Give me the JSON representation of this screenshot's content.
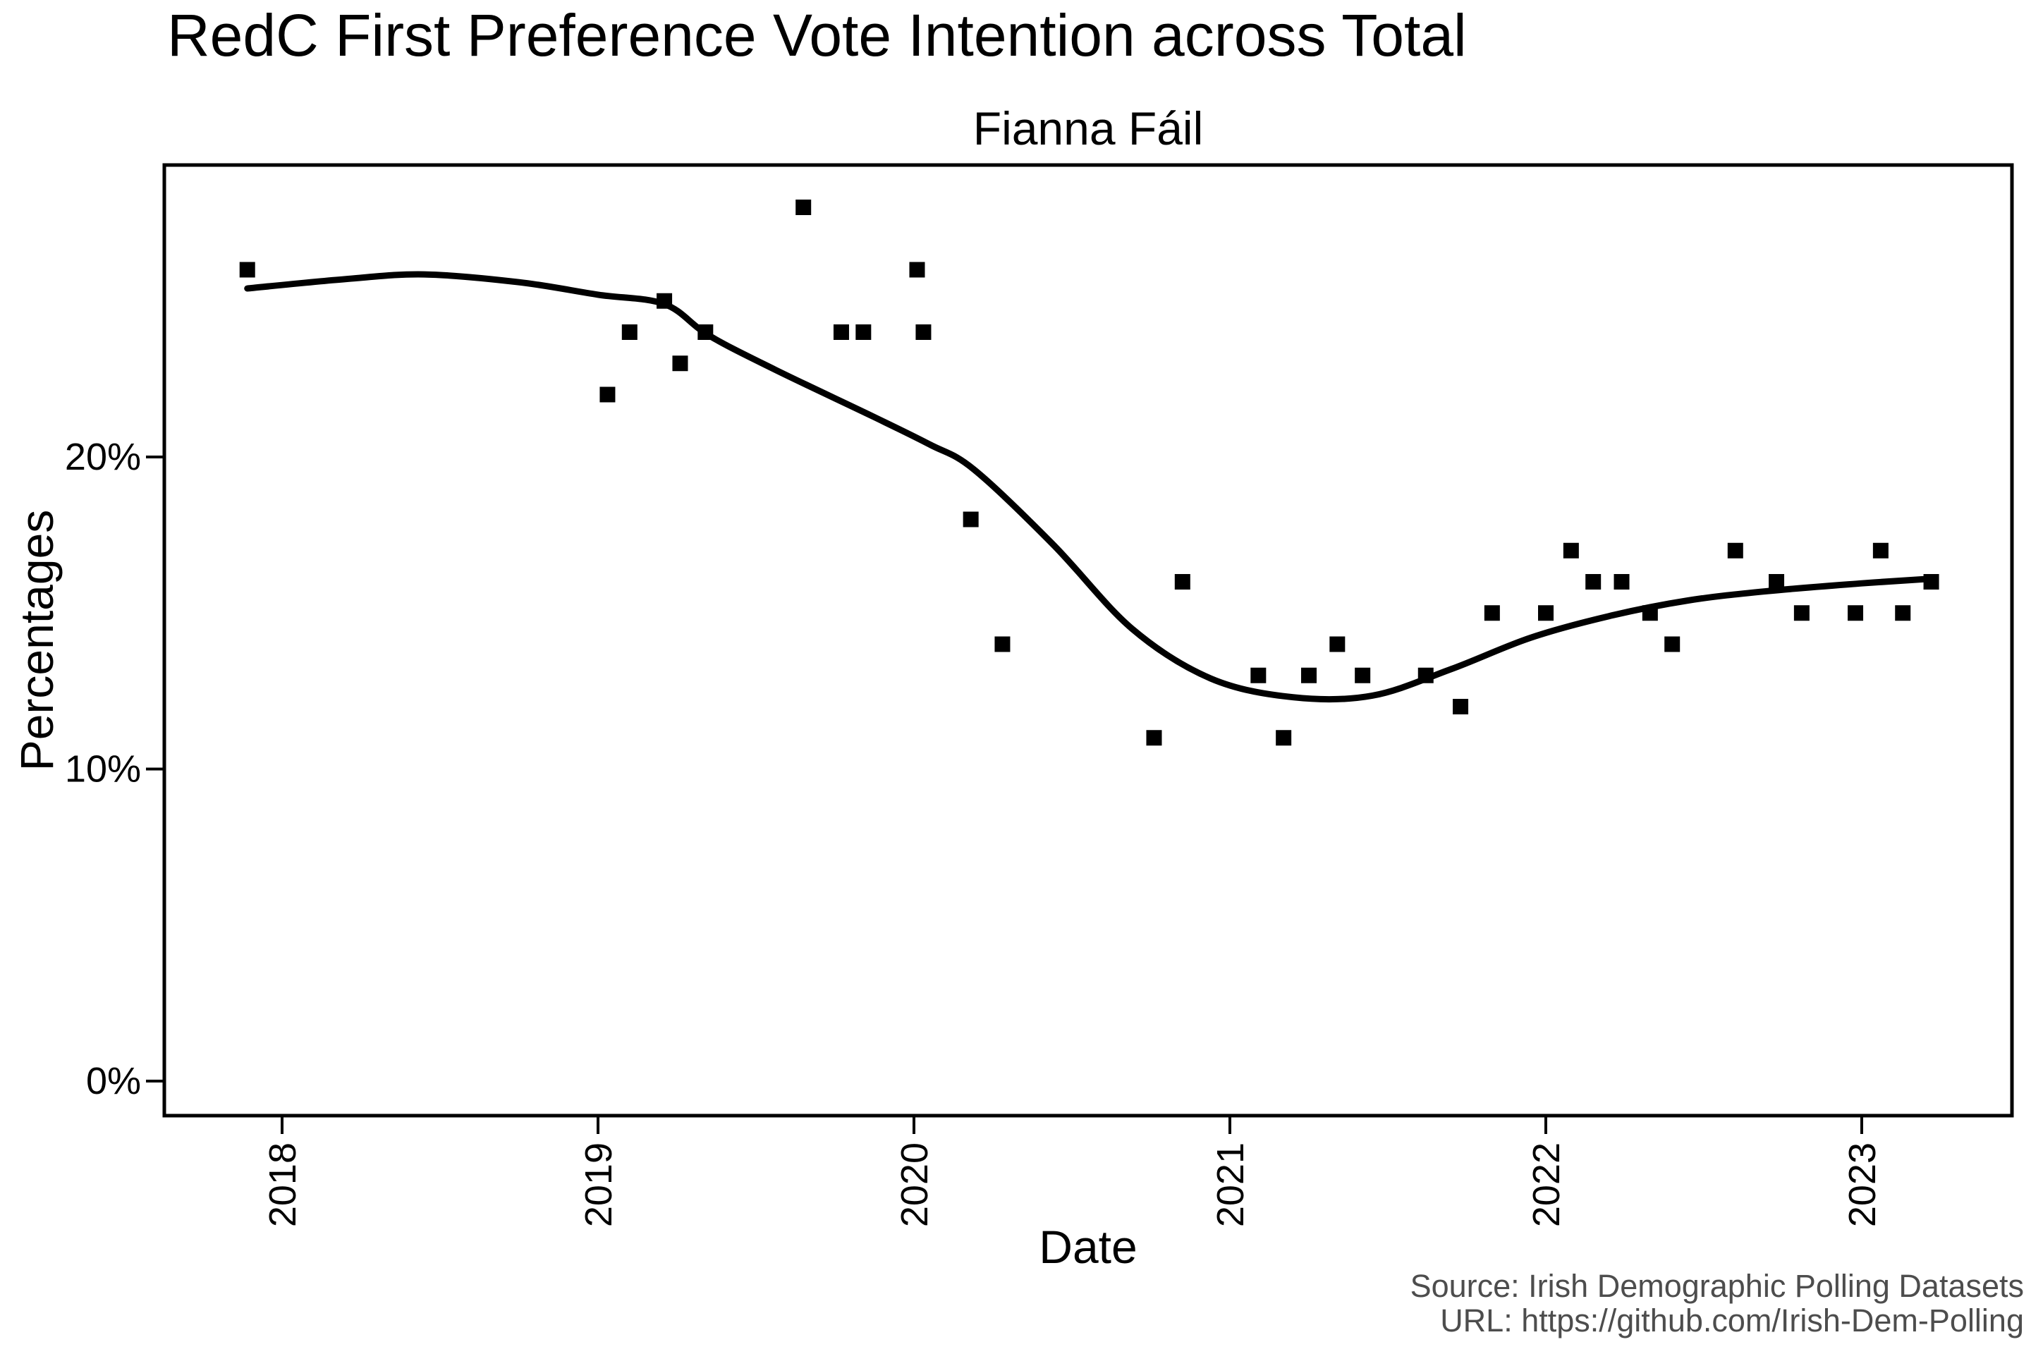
{
  "header": {
    "title": "RedC First Preference Vote Intention across Total",
    "subtitle": "Fianna Fáil"
  },
  "source": {
    "line1": "Source: Irish Demographic Polling Datasets",
    "line2": "URL: https://github.com/Irish-Dem-Polling",
    "color": "#4d4d4d"
  },
  "chart_data": {
    "type": "scatter",
    "title": "RedC First Preference Vote Intention across Total",
    "subtitle": "Fianna Fáil",
    "xlabel": "Date",
    "ylabel": "Percentages",
    "grid": "off",
    "legend": "none",
    "background": "#ffffff",
    "panel_border_color": "#000000",
    "xlim": [
      2017.63,
      2023.48
    ],
    "ylim": [
      -1.1,
      29.4
    ],
    "x_ticks": [
      {
        "value": 2018,
        "label": "2018"
      },
      {
        "value": 2019,
        "label": "2019"
      },
      {
        "value": 2020,
        "label": "2020"
      },
      {
        "value": 2021,
        "label": "2021"
      },
      {
        "value": 2022,
        "label": "2022"
      },
      {
        "value": 2023,
        "label": "2023"
      }
    ],
    "y_ticks": [
      {
        "value": 0,
        "label": "0%"
      },
      {
        "value": 10,
        "label": "10%"
      },
      {
        "value": 20,
        "label": "20%"
      }
    ],
    "series": [
      {
        "name": "poll-results",
        "type": "scatter",
        "marker": "filled-square",
        "color": "#000000",
        "points": [
          [
            2017.89,
            26
          ],
          [
            2019.03,
            22
          ],
          [
            2019.1,
            24
          ],
          [
            2019.21,
            25
          ],
          [
            2019.26,
            23
          ],
          [
            2019.34,
            24
          ],
          [
            2019.65,
            28
          ],
          [
            2019.77,
            24
          ],
          [
            2019.84,
            24
          ],
          [
            2020.01,
            26
          ],
          [
            2020.03,
            24
          ],
          [
            2020.18,
            18
          ],
          [
            2020.28,
            14
          ],
          [
            2020.76,
            11
          ],
          [
            2020.85,
            16
          ],
          [
            2021.09,
            13
          ],
          [
            2021.17,
            11
          ],
          [
            2021.25,
            13
          ],
          [
            2021.34,
            14
          ],
          [
            2021.42,
            13
          ],
          [
            2021.62,
            13
          ],
          [
            2021.73,
            12
          ],
          [
            2021.83,
            15
          ],
          [
            2022.0,
            15
          ],
          [
            2022.08,
            17
          ],
          [
            2022.15,
            16
          ],
          [
            2022.24,
            16
          ],
          [
            2022.33,
            15
          ],
          [
            2022.4,
            14
          ],
          [
            2022.6,
            17
          ],
          [
            2022.73,
            16
          ],
          [
            2022.81,
            15
          ],
          [
            2022.98,
            15
          ],
          [
            2023.06,
            17
          ],
          [
            2023.13,
            15
          ],
          [
            2023.22,
            16
          ]
        ]
      },
      {
        "name": "loess-trend",
        "type": "line",
        "color": "#000000",
        "points": [
          [
            2017.89,
            25.4
          ],
          [
            2018.2,
            25.7
          ],
          [
            2018.45,
            25.85
          ],
          [
            2018.75,
            25.6
          ],
          [
            2019.0,
            25.2
          ],
          [
            2019.21,
            24.9
          ],
          [
            2019.35,
            23.9
          ],
          [
            2019.56,
            22.8
          ],
          [
            2019.87,
            21.3
          ],
          [
            2020.05,
            20.4
          ],
          [
            2020.19,
            19.6
          ],
          [
            2020.44,
            17.2
          ],
          [
            2020.69,
            14.5
          ],
          [
            2020.94,
            12.9
          ],
          [
            2021.2,
            12.3
          ],
          [
            2021.45,
            12.35
          ],
          [
            2021.7,
            13.2
          ],
          [
            2021.95,
            14.2
          ],
          [
            2022.2,
            14.9
          ],
          [
            2022.45,
            15.4
          ],
          [
            2022.7,
            15.7
          ],
          [
            2023.0,
            15.95
          ],
          [
            2023.22,
            16.1
          ]
        ]
      }
    ]
  }
}
